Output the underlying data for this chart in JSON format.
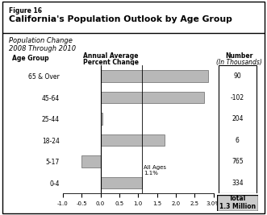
{
  "figure_label": "Figure 16",
  "title": "California's Population Outlook by Age Group",
  "subtitle_line1": "Population Change",
  "subtitle_line2": "2008 Through 2010",
  "age_label": "Age Group",
  "annual_avg_label_line1": "Annual Average",
  "annual_avg_label_line2": "Percent Change",
  "number_header_line1": "Number",
  "number_header_line2": "(In Thousands)",
  "categories": [
    "0-4",
    "5-17",
    "18-24",
    "25-44",
    "45-64",
    "65 & Over"
  ],
  "values": [
    1.1,
    -0.5,
    1.7,
    0.05,
    2.75,
    2.85
  ],
  "numbers": [
    "90",
    "-102",
    "204",
    "6",
    "765",
    "334"
  ],
  "all_ages_label": "All Ages\n1.1%",
  "total_label": "Total\n1.3 Million",
  "bar_color": "#b8b8b8",
  "bar_edge_color": "#666666",
  "xlim_min": -1.0,
  "xlim_max": 3.0,
  "xtick_values": [
    -1.0,
    -0.5,
    0.0,
    0.5,
    1.0,
    1.5,
    2.0,
    2.5,
    3.0
  ],
  "xtick_labels": [
    "-1.0",
    "-0.5",
    "0.0",
    "0.5",
    "1.0",
    "1.5",
    "2.0",
    "2.5",
    "3.0%"
  ],
  "background_color": "#ffffff"
}
